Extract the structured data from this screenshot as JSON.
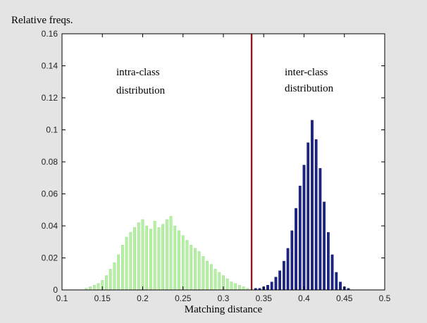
{
  "chart_data": {
    "type": "bar",
    "title": "",
    "ylabel": "Relative freqs.",
    "xlabel": "Matching distance",
    "xlim": [
      0.1,
      0.5
    ],
    "ylim": [
      0,
      0.16
    ],
    "xticks": [
      "0.1",
      "0.15",
      "0.2",
      "0.25",
      "0.3",
      "0.35",
      "0.4",
      "0.45",
      "0.5"
    ],
    "yticks": [
      "0",
      "0.02",
      "0.04",
      "0.06",
      "0.08",
      "0.1",
      "0.12",
      "0.14",
      "0.16"
    ],
    "threshold": 0.335,
    "annotations": {
      "intra_line1": "intra-class",
      "intra_line2": "distribution",
      "inter_line1": "inter-class",
      "inter_line2": "distribution"
    },
    "colors": {
      "intra": "#b6f0a4",
      "inter": "#1c2585",
      "threshold": "#8e1a1a",
      "axes_background": "#ffffff"
    },
    "series": [
      {
        "name": "intra-class distribution",
        "x": [
          0.13,
          0.135,
          0.14,
          0.145,
          0.15,
          0.155,
          0.16,
          0.165,
          0.17,
          0.175,
          0.18,
          0.185,
          0.19,
          0.195,
          0.2,
          0.205,
          0.21,
          0.215,
          0.22,
          0.225,
          0.23,
          0.235,
          0.24,
          0.245,
          0.25,
          0.255,
          0.26,
          0.265,
          0.27,
          0.275,
          0.28,
          0.285,
          0.29,
          0.295,
          0.3,
          0.305,
          0.31,
          0.315,
          0.32,
          0.325,
          0.33
        ],
        "values": [
          0.001,
          0.002,
          0.003,
          0.004,
          0.006,
          0.009,
          0.013,
          0.017,
          0.022,
          0.028,
          0.033,
          0.036,
          0.039,
          0.042,
          0.044,
          0.04,
          0.038,
          0.043,
          0.039,
          0.041,
          0.044,
          0.046,
          0.04,
          0.037,
          0.034,
          0.031,
          0.028,
          0.026,
          0.024,
          0.021,
          0.018,
          0.016,
          0.013,
          0.011,
          0.009,
          0.007,
          0.005,
          0.004,
          0.003,
          0.002,
          0.001
        ]
      },
      {
        "name": "inter-class distribution",
        "x": [
          0.34,
          0.345,
          0.35,
          0.355,
          0.36,
          0.365,
          0.37,
          0.375,
          0.38,
          0.385,
          0.39,
          0.395,
          0.4,
          0.405,
          0.41,
          0.415,
          0.42,
          0.425,
          0.43,
          0.435,
          0.44,
          0.445,
          0.45,
          0.455
        ],
        "values": [
          0.001,
          0.001,
          0.002,
          0.003,
          0.005,
          0.008,
          0.012,
          0.018,
          0.026,
          0.037,
          0.051,
          0.065,
          0.078,
          0.092,
          0.106,
          0.094,
          0.076,
          0.055,
          0.036,
          0.022,
          0.011,
          0.005,
          0.002,
          0.001
        ]
      }
    ]
  }
}
